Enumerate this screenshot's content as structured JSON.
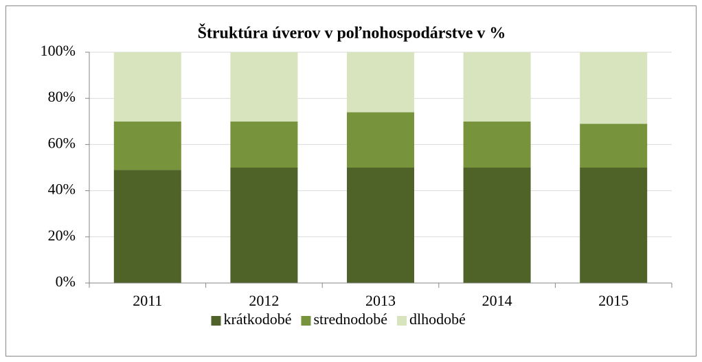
{
  "chart_data": {
    "type": "stacked_bar",
    "title": "Štruktúra úverov v poľnohospodárstve  v %",
    "categories": [
      "2011",
      "2012",
      "2013",
      "2014",
      "2015"
    ],
    "series": [
      {
        "name": "krátkodobé",
        "color": "#4f6228",
        "values": [
          49,
          50,
          50,
          50,
          50
        ]
      },
      {
        "name": "strednodobé",
        "color": "#77933c",
        "values": [
          21,
          20,
          24,
          20,
          19
        ]
      },
      {
        "name": "dlhodobé",
        "color": "#d7e4bd",
        "values": [
          30,
          30,
          26,
          30,
          31
        ]
      }
    ],
    "ylim": [
      0,
      100
    ],
    "yticks": [
      {
        "value": 0,
        "label": "0%"
      },
      {
        "value": 20,
        "label": "20%"
      },
      {
        "value": 40,
        "label": "40%"
      },
      {
        "value": 60,
        "label": "60%"
      },
      {
        "value": 80,
        "label": "80%"
      },
      {
        "value": 100,
        "label": "100%"
      }
    ],
    "grid": true,
    "legend": "bottom"
  }
}
